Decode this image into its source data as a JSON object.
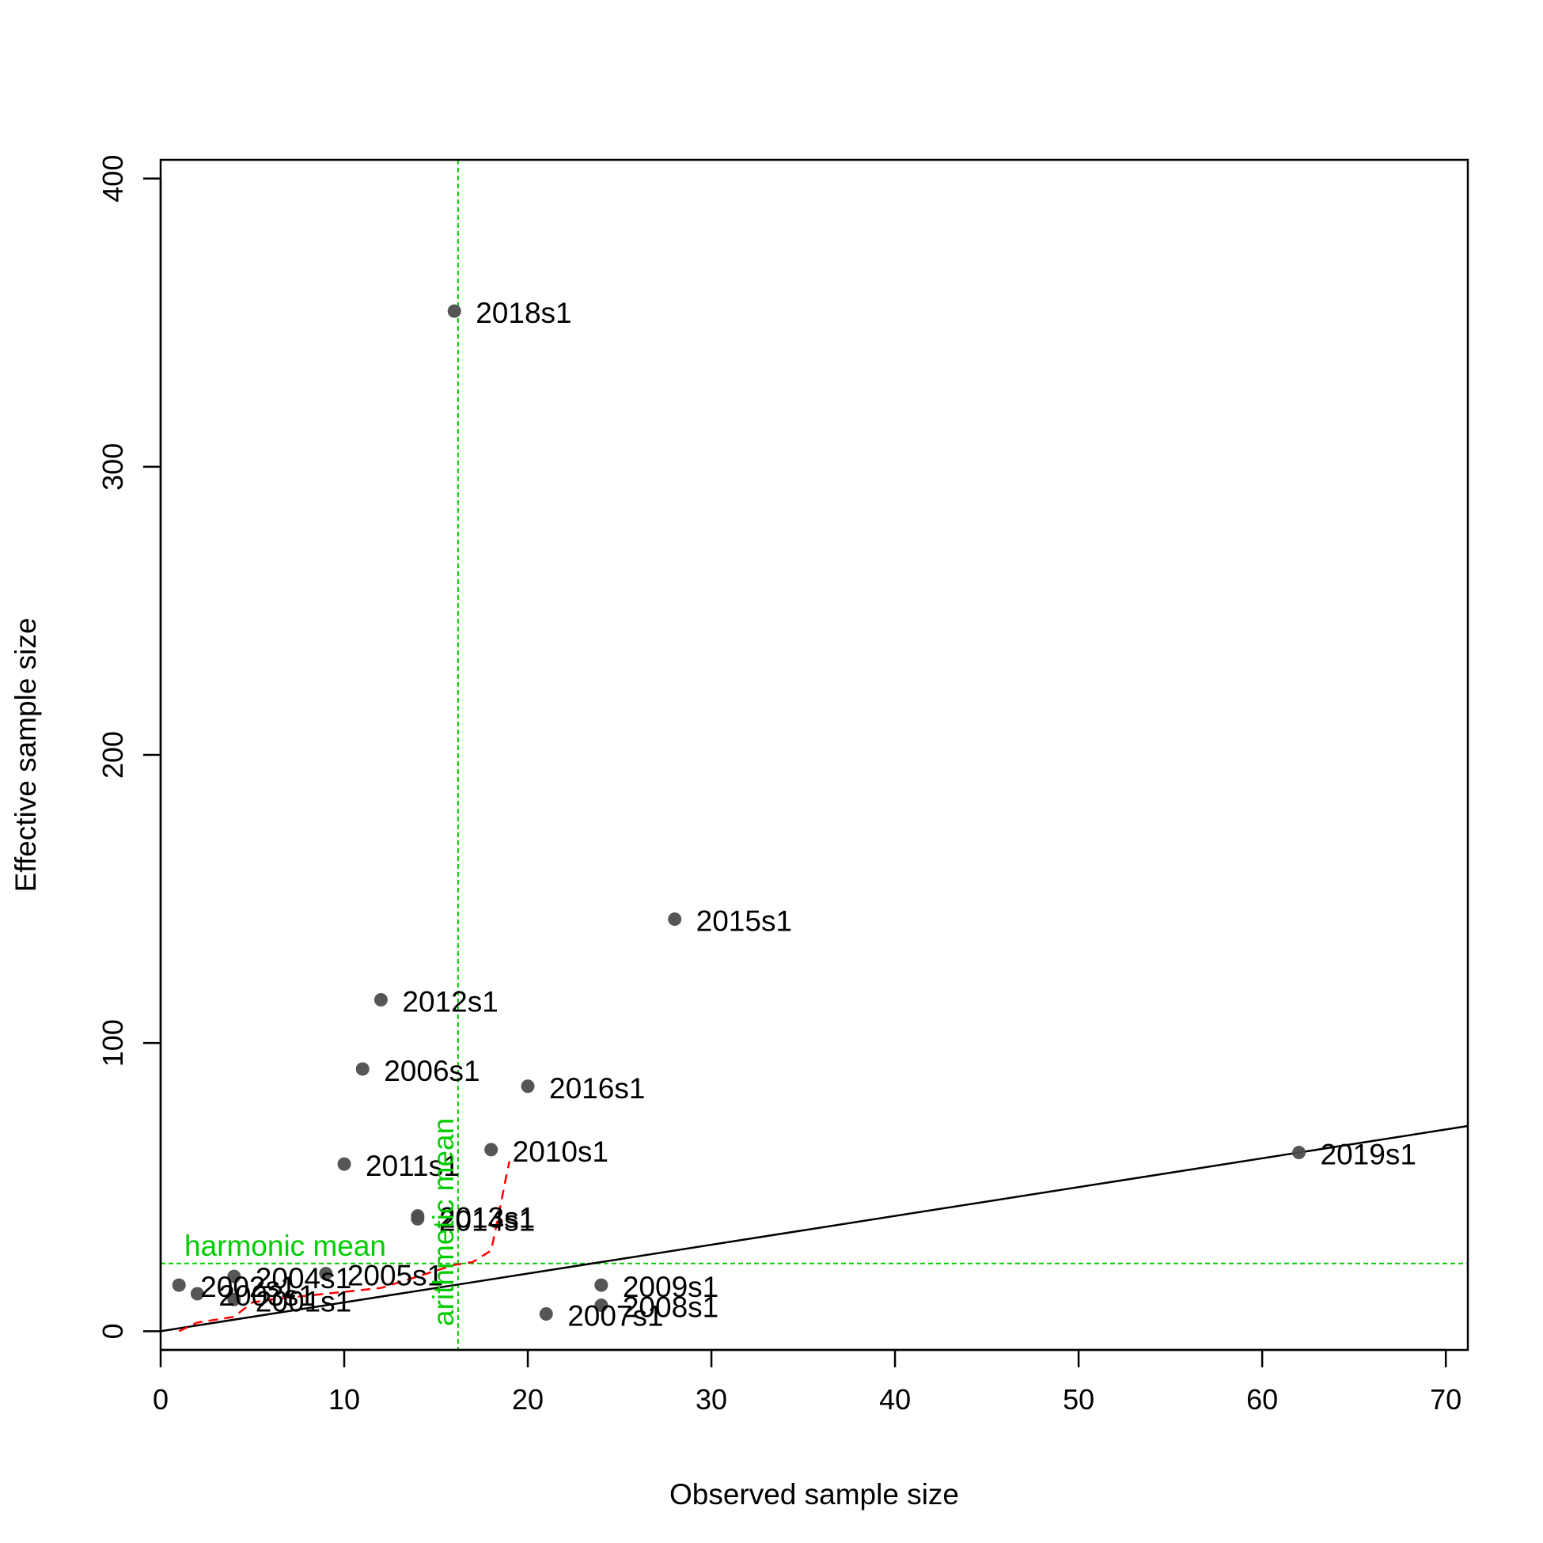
{
  "chart_data": {
    "type": "scatter",
    "title": "",
    "xlabel": "Observed sample size",
    "ylabel": "Effective sample size",
    "xlim": [
      0,
      71.2
    ],
    "ylim": [
      -6.5,
      406.5
    ],
    "xticks": [
      0,
      10,
      20,
      30,
      40,
      50,
      60,
      70
    ],
    "yticks": [
      0,
      100,
      200,
      300,
      400
    ],
    "grid": false,
    "legend": "none",
    "points": [
      {
        "x": 1,
        "y": 16,
        "label": "2002s1"
      },
      {
        "x": 2,
        "y": 13,
        "label": "2003s1"
      },
      {
        "x": 4,
        "y": 19,
        "label": "2004s1"
      },
      {
        "x": 4,
        "y": 11,
        "label": "2001s1"
      },
      {
        "x": 9,
        "y": 20,
        "label": "2005s1"
      },
      {
        "x": 10,
        "y": 58,
        "label": "2011s1"
      },
      {
        "x": 11,
        "y": 91,
        "label": "2006s1"
      },
      {
        "x": 12,
        "y": 115,
        "label": "2012s1"
      },
      {
        "x": 14,
        "y": 40,
        "label": "2013s1"
      },
      {
        "x": 14,
        "y": 39,
        "label": "2014s1"
      },
      {
        "x": 16,
        "y": 354,
        "label": "2018s1"
      },
      {
        "x": 18,
        "y": 63,
        "label": "2010s1"
      },
      {
        "x": 20,
        "y": 85,
        "label": "2016s1"
      },
      {
        "x": 21,
        "y": 6,
        "label": "2007s1"
      },
      {
        "x": 24,
        "y": 16,
        "label": "2009s1"
      },
      {
        "x": 24,
        "y": 9,
        "label": "2008s1"
      },
      {
        "x": 28,
        "y": 143,
        "label": "2015s1"
      },
      {
        "x": 62,
        "y": 62,
        "label": "2019s1"
      }
    ],
    "one_to_one_line": {
      "slope": 1,
      "intercept": 0,
      "color": "#000000"
    },
    "smoother": {
      "color": "#ff0000",
      "style": "dashed",
      "x": [
        1,
        2,
        4,
        5,
        6,
        9,
        12,
        14,
        15,
        16,
        17,
        18,
        18.4,
        18.8,
        19
      ],
      "y": [
        0,
        3,
        5,
        10,
        11,
        13,
        15,
        19,
        21,
        23,
        24,
        28,
        40,
        53,
        59
      ]
    },
    "reference_lines": {
      "color": "#00cd00",
      "arithmetic_mean": {
        "x": 16.2,
        "label": "arithmetic mean"
      },
      "harmonic_mean": {
        "y": 23.5,
        "label": "harmonic mean"
      }
    },
    "point_color": "#4d4d4d"
  }
}
